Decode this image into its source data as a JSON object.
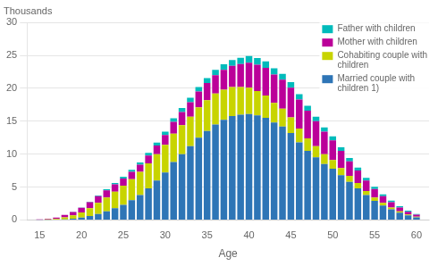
{
  "chart_data": {
    "type": "bar",
    "stacked": true,
    "ylabel": "Thousands",
    "xlabel": "Age",
    "x": [
      15,
      16,
      17,
      18,
      19,
      20,
      21,
      22,
      23,
      24,
      25,
      26,
      27,
      28,
      29,
      30,
      31,
      32,
      33,
      34,
      35,
      36,
      37,
      38,
      39,
      40,
      41,
      42,
      43,
      44,
      45,
      46,
      47,
      48,
      49,
      50,
      51,
      52,
      53,
      54,
      55,
      56,
      57,
      58,
      59,
      60
    ],
    "series": [
      {
        "name": "Married couple with\nchildren 1)",
        "color": "#2E75B6",
        "values": [
          0.02,
          0.03,
          0.05,
          0.1,
          0.2,
          0.35,
          0.6,
          0.9,
          1.3,
          1.8,
          2.3,
          3.0,
          3.8,
          4.8,
          6.0,
          7.2,
          8.8,
          10.0,
          11.2,
          12.5,
          13.5,
          14.5,
          15.2,
          15.8,
          16.0,
          16.1,
          15.9,
          15.5,
          14.8,
          14.2,
          13.2,
          11.8,
          10.5,
          9.5,
          8.5,
          7.8,
          6.8,
          5.8,
          4.8,
          3.8,
          2.9,
          2.2,
          1.6,
          1.1,
          0.7,
          0.4
        ]
      },
      {
        "name": "Cohabiting couple with\nchildren",
        "color": "#C8D400",
        "values": [
          0.01,
          0.05,
          0.1,
          0.3,
          0.5,
          0.8,
          1.2,
          1.7,
          2.1,
          2.5,
          2.9,
          3.2,
          3.5,
          3.8,
          4.0,
          4.2,
          4.3,
          4.4,
          4.5,
          4.6,
          4.7,
          4.7,
          4.6,
          4.4,
          4.2,
          4.0,
          3.7,
          3.4,
          3.0,
          2.7,
          2.4,
          2.1,
          1.9,
          1.7,
          1.5,
          1.3,
          1.1,
          0.9,
          0.8,
          0.6,
          0.5,
          0.4,
          0.3,
          0.2,
          0.15,
          0.1
        ]
      },
      {
        "name": "Mother with children",
        "color": "#BB0099",
        "values": [
          0.05,
          0.1,
          0.2,
          0.35,
          0.5,
          0.7,
          0.9,
          1.0,
          1.1,
          1.1,
          1.1,
          1.1,
          1.1,
          1.2,
          1.3,
          1.5,
          1.8,
          2.0,
          2.2,
          2.4,
          2.6,
          2.8,
          3.0,
          3.2,
          3.5,
          3.8,
          4.0,
          4.2,
          4.3,
          4.4,
          4.5,
          4.4,
          4.2,
          3.8,
          3.4,
          3.0,
          2.6,
          2.2,
          1.9,
          1.6,
          1.3,
          1.0,
          0.8,
          0.6,
          0.4,
          0.3
        ]
      },
      {
        "name": "Father with children",
        "color": "#00BBBB",
        "values": [
          0.0,
          0.0,
          0.0,
          0.02,
          0.03,
          0.05,
          0.08,
          0.1,
          0.15,
          0.2,
          0.25,
          0.3,
          0.35,
          0.4,
          0.45,
          0.5,
          0.55,
          0.6,
          0.65,
          0.7,
          0.75,
          0.8,
          0.85,
          0.9,
          0.95,
          1.0,
          1.0,
          1.0,
          0.95,
          0.9,
          0.85,
          0.8,
          0.75,
          0.7,
          0.65,
          0.6,
          0.55,
          0.5,
          0.45,
          0.4,
          0.35,
          0.3,
          0.25,
          0.2,
          0.15,
          0.1
        ]
      }
    ],
    "xlim": [
      13.5,
      61.5
    ],
    "xticks": [
      15,
      20,
      25,
      30,
      35,
      40,
      45,
      50,
      55,
      60
    ],
    "ylim": [
      0,
      30
    ],
    "yticks": [
      0,
      5,
      10,
      15,
      20,
      25,
      30
    ],
    "grid": true,
    "legend": "upper right"
  }
}
